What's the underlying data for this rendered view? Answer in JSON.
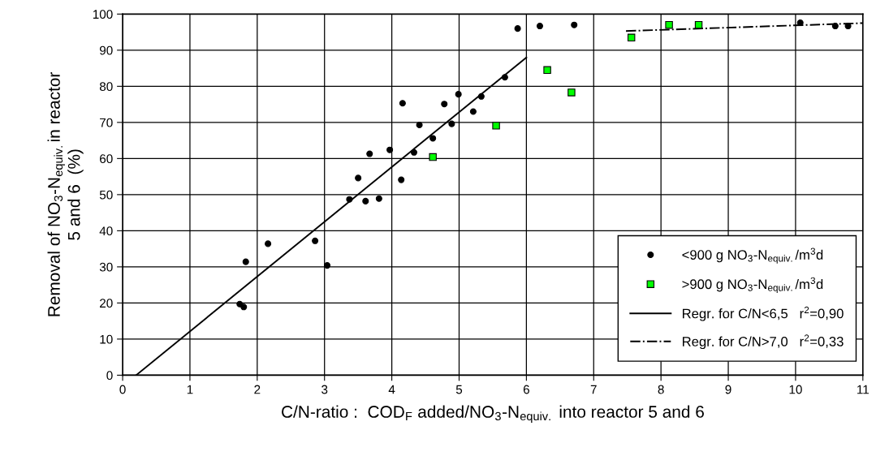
{
  "chart_data": {
    "type": "scatter",
    "xlabel": "C/N-ratio :  COD$_{F}$ added/NO$_{3}$-N$_{equiv.}$ into reactor 5 and 6",
    "ylabel": "Removal of NO$_{3}$-N$_{equiv.}$in reactor\n5 and 6  (%)",
    "xlim": [
      0,
      11
    ],
    "ylim": [
      0,
      100
    ],
    "xticks": [
      0,
      1,
      2,
      3,
      4,
      5,
      6,
      7,
      8,
      9,
      10,
      11
    ],
    "yticks": [
      0,
      10,
      20,
      30,
      40,
      50,
      60,
      70,
      80,
      90,
      100
    ],
    "grid": true,
    "legend": "bottom right",
    "series": [
      {
        "name": "<900 g NO$_{3}$-N$_{equiv.}$/m$^{3}$d",
        "marker": "circle",
        "color": "#000000",
        "x": [
          1.74,
          1.8,
          1.83,
          2.16,
          2.86,
          3.04,
          3.37,
          3.5,
          3.61,
          3.81,
          3.67,
          3.97,
          4.14,
          4.16,
          4.33,
          4.41,
          4.61,
          4.78,
          4.89,
          4.99,
          5.21,
          5.33,
          5.68,
          5.87,
          6.2,
          6.71,
          10.07,
          10.59,
          10.78
        ],
        "values": [
          19.7,
          18.9,
          31.4,
          36.4,
          37.2,
          30.4,
          48.7,
          54.6,
          48.2,
          48.9,
          61.3,
          62.4,
          54.1,
          75.3,
          61.7,
          69.3,
          65.6,
          75.1,
          69.6,
          77.8,
          73.0,
          77.2,
          82.5,
          96.0,
          96.7,
          97.0,
          97.6,
          96.7,
          96.7
        ]
      },
      {
        "name": ">900 g NO$_{3}$-N$_{equiv.}$/m$^{3}$d",
        "marker": "square",
        "color": "#00ff00",
        "x": [
          4.61,
          5.55,
          6.31,
          6.67,
          7.56,
          8.12,
          8.56
        ],
        "values": [
          60.4,
          69.1,
          84.5,
          78.3,
          93.5,
          97.0,
          97.0
        ]
      },
      {
        "name": "Regr. for C/N<6,5   r$^{2}$=0,90",
        "type": "line",
        "line_style": "solid",
        "color": "#000000",
        "x": [
          0.2,
          6.0
        ],
        "values": [
          0,
          88.0
        ]
      },
      {
        "name": "Regr. for C/N>7,0   r$^{2}$=0,33",
        "type": "line",
        "line_style": "dashdot",
        "color": "#000000",
        "x": [
          7.48,
          11.0
        ],
        "values": [
          95.3,
          97.5
        ]
      }
    ]
  }
}
